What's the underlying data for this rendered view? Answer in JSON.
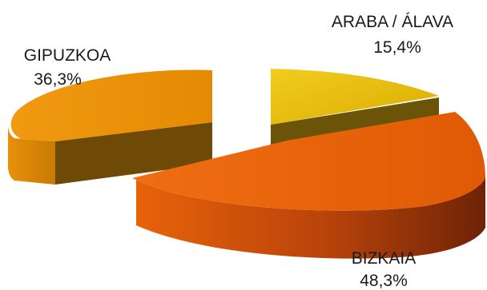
{
  "chart_data": {
    "type": "pie",
    "categories": [
      "ARABA / ÁLAVA",
      "BIZKAIA",
      "GIPUZKOA"
    ],
    "values": [
      15.4,
      48.3,
      36.3
    ],
    "value_labels": [
      "15,4%",
      "48,3%",
      "36,3%"
    ],
    "colors": {
      "ARABA / ÁLAVA": "#e7bf00",
      "BIZKAIA": "#e8620a",
      "GIPUZKOA": "#ec9306"
    },
    "style": "3d-exploded",
    "legend": "none",
    "grid": false
  }
}
